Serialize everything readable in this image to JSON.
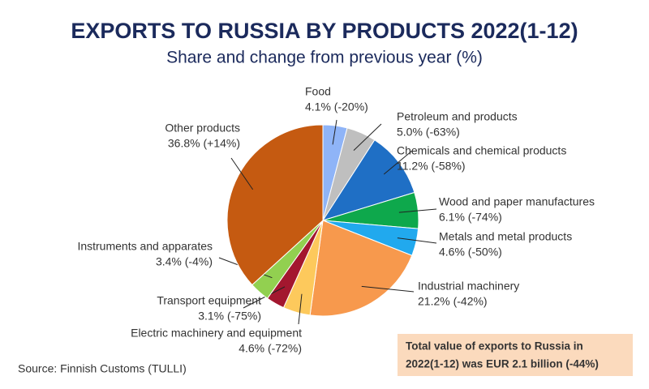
{
  "chart_data": {
    "type": "pie",
    "title": "EXPORTS TO RUSSIA BY PRODUCTS 2022(1-12)",
    "subtitle": "Share and change from previous year (%)",
    "categories": [
      "Food",
      "Petroleum and products",
      "Chemicals and chemical products",
      "Wood and paper manufactures",
      "Metals and metal products",
      "Industrial machinery",
      "Electric machinery and equipment",
      "Transport equipment",
      "Instruments and apparates",
      "Other products"
    ],
    "values": [
      4.1,
      5.0,
      11.2,
      6.1,
      4.6,
      21.2,
      4.6,
      3.1,
      3.4,
      36.8
    ],
    "value_labels": [
      "4.1% (-20%)",
      "5.0% (-63%)",
      "11.2% (-58%)",
      "6.1% (-74%)",
      "4.6% (-50%)",
      "21.2% (-42%)",
      "4.6% (-72%)",
      "3.1% (-75%)",
      "3.4% (-4%)",
      "36.8% (+14%)"
    ],
    "colors": [
      "#8fb4f7",
      "#bfbfbf",
      "#1f6fc5",
      "#0ea84c",
      "#21a9ee",
      "#f7994d",
      "#fdc95c",
      "#a3172f",
      "#92d050",
      "#c55a11"
    ],
    "annotation": [
      "Total value of exports to Russia in",
      "2022(1-12) was EUR 2.1 billion (-44%)"
    ],
    "source": "Source: Finnish Customs (TULLI)"
  }
}
